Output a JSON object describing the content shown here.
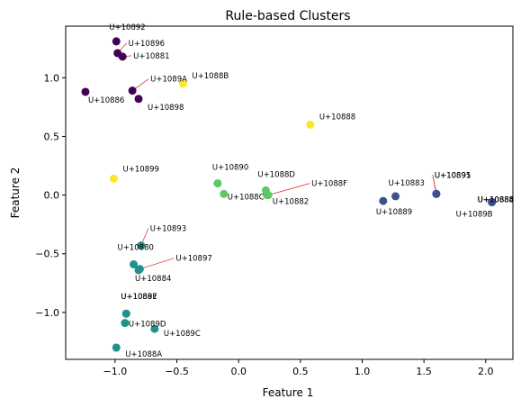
{
  "chart_data": {
    "type": "scatter",
    "title": "Rule-based Clusters",
    "xlabel": "Feature 1",
    "ylabel": "Feature 2",
    "xlim": [
      -1.4,
      2.22
    ],
    "ylim": [
      -1.4,
      1.44
    ],
    "xticks": [
      -1.0,
      -0.5,
      0.0,
      0.5,
      1.0,
      1.5,
      2.0
    ],
    "yticks": [
      -1.0,
      -0.5,
      0.0,
      0.5,
      1.0
    ],
    "xtick_labels": [
      "−1.0",
      "−0.5",
      "0.0",
      "0.5",
      "1.0",
      "1.5",
      "2.0"
    ],
    "ytick_labels": [
      "−1.0",
      "−0.5",
      "0.0",
      "0.5",
      "1.0"
    ],
    "grid": false,
    "legend": "none",
    "colors": {
      "purple": "#440154",
      "blue": "#3b528b",
      "teal": "#21918c",
      "green": "#5ec962",
      "yellow": "#fde725",
      "leader": "#d62728"
    },
    "points": [
      {
        "label": "U+10892",
        "x": -0.99,
        "y": 1.31,
        "color": "purple"
      },
      {
        "label": "U+10896",
        "x": -0.98,
        "y": 1.21,
        "color": "purple"
      },
      {
        "label": "U+10881",
        "x": -0.94,
        "y": 1.18,
        "color": "purple"
      },
      {
        "label": "U+1089A",
        "x": -0.86,
        "y": 0.89,
        "color": "purple"
      },
      {
        "label": "U+10886",
        "x": -1.24,
        "y": 0.88,
        "color": "purple"
      },
      {
        "label": "U+10898",
        "x": -0.81,
        "y": 0.82,
        "color": "purple"
      },
      {
        "label": "U+1088B",
        "x": -0.45,
        "y": 0.95,
        "color": "yellow"
      },
      {
        "label": "U+10888",
        "x": 0.58,
        "y": 0.6,
        "color": "yellow"
      },
      {
        "label": "U+10899",
        "x": -1.01,
        "y": 0.14,
        "color": "yellow"
      },
      {
        "label": "U+10890",
        "x": -0.17,
        "y": 0.1,
        "color": "green"
      },
      {
        "label": "U+1088C",
        "x": -0.12,
        "y": 0.01,
        "color": "green"
      },
      {
        "label": "U+1088D",
        "x": 0.22,
        "y": 0.04,
        "color": "green"
      },
      {
        "label": "U+1088F",
        "x": 0.24,
        "y": 0.0,
        "color": "green"
      },
      {
        "label": "U+10882",
        "x": 0.23,
        "y": 0.0,
        "color": "green"
      },
      {
        "label": "U+10883",
        "x": 1.27,
        "y": -0.01,
        "color": "blue"
      },
      {
        "label": "U+10889",
        "x": 1.17,
        "y": -0.05,
        "color": "blue"
      },
      {
        "label": "U+10891",
        "x": 1.6,
        "y": 0.01,
        "color": "blue"
      },
      {
        "label": "U+10895",
        "x": 1.6,
        "y": 0.01,
        "color": "blue"
      },
      {
        "label": "U+10884",
        "x": 2.05,
        "y": -0.06,
        "color": "blue"
      },
      {
        "label": "U+10885",
        "x": 2.05,
        "y": -0.06,
        "color": "blue"
      },
      {
        "label": "U+1088E",
        "x": 2.05,
        "y": -0.06,
        "color": "blue"
      },
      {
        "label": "U+1089B",
        "x": 2.05,
        "y": -0.06,
        "color": "blue"
      },
      {
        "label": "U+10893",
        "x": -0.79,
        "y": -0.43,
        "color": "teal"
      },
      {
        "label": "U+10880",
        "x": -0.85,
        "y": -0.59,
        "color": "teal"
      },
      {
        "label": "U+10897",
        "x": -0.8,
        "y": -0.63,
        "color": "teal"
      },
      {
        "label": "U+10884",
        "x": -0.81,
        "y": -0.64,
        "color": "teal"
      },
      {
        "label": "U+10887",
        "x": -0.91,
        "y": -1.01,
        "color": "teal"
      },
      {
        "label": "U+1089E",
        "x": -0.91,
        "y": -1.01,
        "color": "teal"
      },
      {
        "label": "U+1089D",
        "x": -0.92,
        "y": -1.09,
        "color": "teal"
      },
      {
        "label": "U+1089C",
        "x": -0.68,
        "y": -1.14,
        "color": "teal"
      },
      {
        "label": "U+1088A",
        "x": -0.99,
        "y": -1.3,
        "color": "teal"
      }
    ]
  }
}
